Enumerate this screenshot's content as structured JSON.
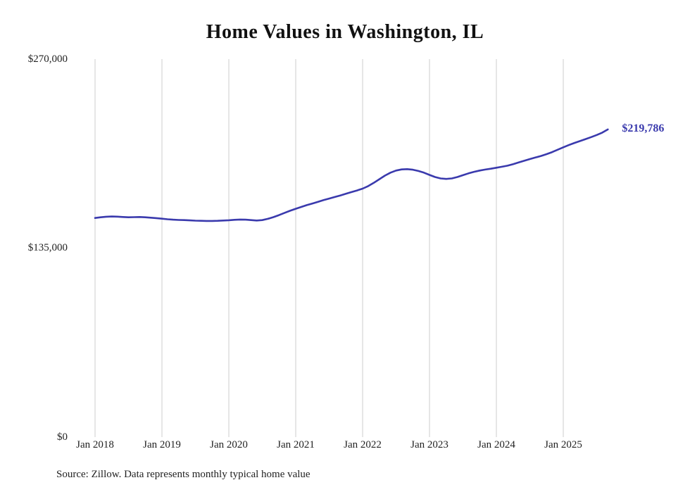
{
  "title": "Home Values in Washington, IL",
  "source_note": "Source: Zillow. Data represents monthly typical home value",
  "end_label": "$219,786",
  "colors": {
    "line": "#3a3aad",
    "grid": "#cccccc",
    "text": "#222222",
    "title": "#111111",
    "background": "#ffffff"
  },
  "chart_data": {
    "type": "line",
    "title": "Home Values in Washington, IL",
    "xlabel": "",
    "ylabel": "",
    "ylim": [
      0,
      270000
    ],
    "y_ticks": [
      0,
      135000,
      270000
    ],
    "y_tick_labels": [
      "$0",
      "$135,000",
      "$270,000"
    ],
    "x_tick_labels": [
      "Jan 2018",
      "Jan 2019",
      "Jan 2020",
      "Jan 2021",
      "Jan 2022",
      "Jan 2023",
      "Jan 2024",
      "Jan 2025"
    ],
    "grid": "vertical-only",
    "legend_position": "none",
    "annotation": {
      "text": "$219,786",
      "attached_to": "last-point"
    },
    "x": [
      "2018-01",
      "2018-02",
      "2018-03",
      "2018-04",
      "2018-05",
      "2018-06",
      "2018-07",
      "2018-08",
      "2018-09",
      "2018-10",
      "2018-11",
      "2018-12",
      "2019-01",
      "2019-02",
      "2019-03",
      "2019-04",
      "2019-05",
      "2019-06",
      "2019-07",
      "2019-08",
      "2019-09",
      "2019-10",
      "2019-11",
      "2019-12",
      "2020-01",
      "2020-02",
      "2020-03",
      "2020-04",
      "2020-05",
      "2020-06",
      "2020-07",
      "2020-08",
      "2020-09",
      "2020-10",
      "2020-11",
      "2020-12",
      "2021-01",
      "2021-02",
      "2021-03",
      "2021-04",
      "2021-05",
      "2021-06",
      "2021-07",
      "2021-08",
      "2021-09",
      "2021-10",
      "2021-11",
      "2021-12",
      "2022-01",
      "2022-02",
      "2022-03",
      "2022-04",
      "2022-05",
      "2022-06",
      "2022-07",
      "2022-08",
      "2022-09",
      "2022-10",
      "2022-11",
      "2022-12",
      "2023-01",
      "2023-02",
      "2023-03",
      "2023-04",
      "2023-05",
      "2023-06",
      "2023-07",
      "2023-08",
      "2023-09",
      "2023-10",
      "2023-11",
      "2023-12",
      "2024-01",
      "2024-02",
      "2024-03",
      "2024-04",
      "2024-05",
      "2024-06",
      "2024-07",
      "2024-08",
      "2024-09",
      "2024-10",
      "2024-11",
      "2024-12",
      "2025-01",
      "2025-02",
      "2025-03",
      "2025-04",
      "2025-05",
      "2025-06",
      "2025-07",
      "2025-08",
      "2025-09"
    ],
    "series": [
      {
        "name": "Typical home value",
        "values": [
          156500,
          157000,
          157400,
          157600,
          157500,
          157200,
          157000,
          157100,
          157200,
          157000,
          156700,
          156400,
          156000,
          155600,
          155300,
          155100,
          155000,
          154800,
          154600,
          154500,
          154400,
          154400,
          154500,
          154700,
          154900,
          155200,
          155400,
          155300,
          155000,
          154700,
          155000,
          155900,
          157100,
          158600,
          160200,
          161700,
          163100,
          164400,
          165700,
          166900,
          168100,
          169300,
          170400,
          171500,
          172600,
          173800,
          175000,
          176200,
          177500,
          179300,
          181600,
          184200,
          186800,
          188900,
          190400,
          191200,
          191400,
          191000,
          190100,
          188900,
          187300,
          185800,
          184800,
          184400,
          184800,
          185800,
          187100,
          188400,
          189500,
          190400,
          191100,
          191700,
          192400,
          193100,
          193900,
          195000,
          196200,
          197400,
          198600,
          199700,
          200800,
          202100,
          203600,
          205300,
          207000,
          208600,
          210100,
          211500,
          212900,
          214300,
          215800,
          217500,
          219786
        ]
      }
    ],
    "final_value": 219786
  }
}
